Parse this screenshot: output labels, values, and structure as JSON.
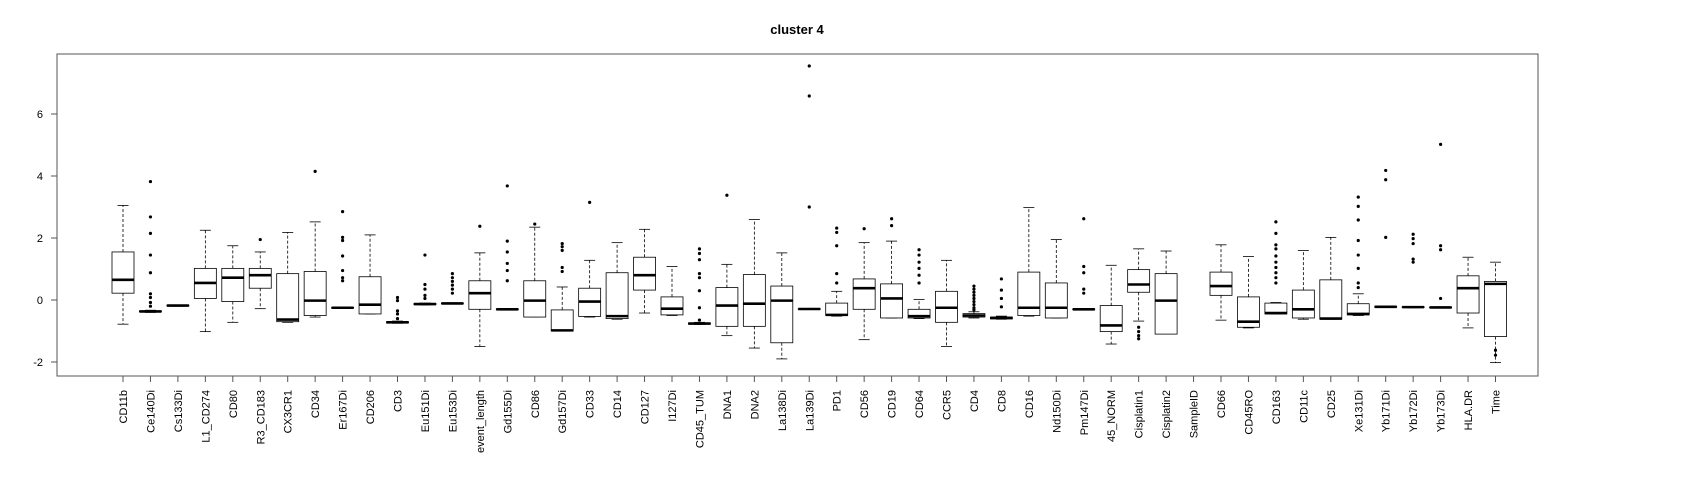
{
  "chart_data": {
    "type": "boxplot",
    "title": "cluster 4",
    "xlabel": "",
    "ylabel": "",
    "ylim": [
      -2.4,
      7.7
    ],
    "yticks": [
      -2,
      0,
      2,
      4,
      6
    ],
    "grid": false,
    "legend": "none",
    "colors": {
      "box_fill": "#ffffff",
      "stroke": "#000000",
      "median": "#000000"
    },
    "categories": [
      "CD11b",
      "Ce140Di",
      "Cs133Di",
      "L1_CD274",
      "CD80",
      "R3_CD183",
      "CX3CR1",
      "CD34",
      "Er167Di",
      "CD206",
      "CD3",
      "Eu151Di",
      "Eu153Di",
      "event_length",
      "Gd155Di",
      "CD86",
      "Gd157Di",
      "CD33",
      "CD14",
      "CD127",
      "I127Di",
      "CD45_TUM",
      "DNA1",
      "DNA2",
      "La138Di",
      "La139Di",
      "PD1",
      "CD56",
      "CD19",
      "CD64",
      "CCR5",
      "CD4",
      "CD8",
      "CD16",
      "Nd150Di",
      "Pm147Di",
      "45_NORM",
      "Cisplatin1",
      "Cisplatin2",
      "SampleID",
      "CD66",
      "CD45RO",
      "CD163",
      "CD11c",
      "CD25",
      "Xe131Di",
      "Yb171Di",
      "Yb172Di",
      "Yb173Di",
      "HLA.DR",
      "Time"
    ],
    "boxes": [
      {
        "wlo": -0.78,
        "q1": 0.22,
        "med": 0.65,
        "q3": 1.55,
        "whi": 3.05,
        "out": []
      },
      {
        "wlo": -0.4,
        "q1": -0.38,
        "med": -0.37,
        "q3": -0.35,
        "whi": -0.33,
        "out": [
          3.82,
          2.68,
          2.15,
          1.45,
          0.88,
          0.2,
          0.08,
          -0.08,
          -0.2
        ]
      },
      {
        "wlo": -0.2,
        "q1": -0.19,
        "med": -0.18,
        "q3": -0.17,
        "whi": -0.16,
        "out": []
      },
      {
        "wlo": -1.02,
        "q1": 0.05,
        "med": 0.55,
        "q3": 1.02,
        "whi": 2.25,
        "out": []
      },
      {
        "wlo": -0.72,
        "q1": -0.05,
        "med": 0.72,
        "q3": 1.02,
        "whi": 1.75,
        "out": []
      },
      {
        "wlo": -0.28,
        "q1": 0.38,
        "med": 0.8,
        "q3": 1.02,
        "whi": 1.55,
        "out": [
          1.95
        ]
      },
      {
        "wlo": -0.72,
        "q1": -0.7,
        "med": -0.63,
        "q3": 0.85,
        "whi": 2.18,
        "out": []
      },
      {
        "wlo": -0.55,
        "q1": -0.5,
        "med": -0.02,
        "q3": 0.92,
        "whi": 2.52,
        "out": [
          4.15
        ]
      },
      {
        "wlo": -0.27,
        "q1": -0.26,
        "med": -0.25,
        "q3": -0.24,
        "whi": -0.23,
        "out": [
          2.85,
          2.02,
          1.92,
          1.42,
          0.95,
          0.72,
          0.62
        ]
      },
      {
        "wlo": -0.45,
        "q1": -0.45,
        "med": -0.15,
        "q3": 0.75,
        "whi": 2.1,
        "out": []
      },
      {
        "wlo": -0.75,
        "q1": -0.74,
        "med": -0.72,
        "q3": -0.7,
        "whi": -0.68,
        "out": [
          0.08,
          -0.02,
          -0.35,
          -0.45,
          -0.6
        ]
      },
      {
        "wlo": -0.16,
        "q1": -0.15,
        "med": -0.13,
        "q3": -0.11,
        "whi": -0.1,
        "out": [
          1.45,
          0.5,
          0.35,
          0.15,
          0.05
        ]
      },
      {
        "wlo": -0.12,
        "q1": -0.12,
        "med": -0.11,
        "q3": -0.1,
        "whi": -0.09,
        "out": [
          0.85,
          0.72,
          0.6,
          0.48,
          0.35,
          0.22
        ]
      },
      {
        "wlo": -1.5,
        "q1": -0.3,
        "med": 0.22,
        "q3": 0.62,
        "whi": 1.52,
        "out": [
          2.38
        ]
      },
      {
        "wlo": -0.32,
        "q1": -0.31,
        "med": -0.3,
        "q3": -0.29,
        "whi": -0.28,
        "out": [
          3.68,
          1.9,
          1.55,
          1.18,
          0.95,
          0.62
        ]
      },
      {
        "wlo": -0.55,
        "q1": -0.55,
        "med": -0.02,
        "q3": 0.62,
        "whi": 2.35,
        "out": [
          2.45
        ]
      },
      {
        "wlo": -1.0,
        "q1": -1.0,
        "med": -0.98,
        "q3": -0.32,
        "whi": 0.42,
        "out": [
          1.82,
          1.72,
          1.6,
          1.05,
          0.92
        ]
      },
      {
        "wlo": -0.55,
        "q1": -0.53,
        "med": -0.05,
        "q3": 0.38,
        "whi": 1.28,
        "out": [
          3.15
        ]
      },
      {
        "wlo": -0.62,
        "q1": -0.6,
        "med": -0.52,
        "q3": 0.88,
        "whi": 1.85,
        "out": []
      },
      {
        "wlo": -0.42,
        "q1": 0.32,
        "med": 0.8,
        "q3": 1.38,
        "whi": 2.28,
        "out": []
      },
      {
        "wlo": -0.5,
        "q1": -0.48,
        "med": -0.28,
        "q3": 0.1,
        "whi": 1.08,
        "out": []
      },
      {
        "wlo": -0.79,
        "q1": -0.78,
        "med": -0.76,
        "q3": -0.74,
        "whi": -0.72,
        "out": [
          1.65,
          1.5,
          1.3,
          0.85,
          0.72,
          0.3,
          -0.25,
          -0.65
        ]
      },
      {
        "wlo": -1.15,
        "q1": -0.85,
        "med": -0.18,
        "q3": 0.4,
        "whi": 1.15,
        "out": [
          3.38
        ]
      },
      {
        "wlo": -1.55,
        "q1": -0.85,
        "med": -0.12,
        "q3": 0.82,
        "whi": 2.6,
        "out": []
      },
      {
        "wlo": -1.9,
        "q1": -1.38,
        "med": -0.02,
        "q3": 0.45,
        "whi": 1.52,
        "out": []
      },
      {
        "wlo": -0.31,
        "q1": -0.3,
        "med": -0.29,
        "q3": -0.28,
        "whi": -0.27,
        "out": [
          7.55,
          6.58,
          3.0
        ]
      },
      {
        "wlo": -0.52,
        "q1": -0.5,
        "med": -0.48,
        "q3": -0.1,
        "whi": 0.28,
        "out": [
          2.32,
          2.18,
          1.75,
          0.85,
          0.55
        ]
      },
      {
        "wlo": -1.28,
        "q1": -0.3,
        "med": 0.38,
        "q3": 0.68,
        "whi": 1.85,
        "out": [
          2.3
        ]
      },
      {
        "wlo": -0.58,
        "q1": -0.58,
        "med": 0.05,
        "q3": 0.52,
        "whi": 1.9,
        "out": [
          2.62,
          2.4
        ]
      },
      {
        "wlo": -0.6,
        "q1": -0.58,
        "med": -0.52,
        "q3": -0.3,
        "whi": 0.02,
        "out": [
          1.62,
          1.45,
          1.22,
          1.02,
          0.8,
          0.55
        ]
      },
      {
        "wlo": -1.5,
        "q1": -0.72,
        "med": -0.25,
        "q3": 0.28,
        "whi": 1.28,
        "out": []
      },
      {
        "wlo": -0.58,
        "q1": -0.55,
        "med": -0.5,
        "q3": -0.44,
        "whi": -0.38,
        "out": [
          0.45,
          0.35,
          0.25,
          0.15,
          0.05,
          -0.05,
          -0.15,
          -0.25,
          -0.32
        ]
      },
      {
        "wlo": -0.62,
        "q1": -0.61,
        "med": -0.58,
        "q3": -0.55,
        "whi": -0.52,
        "out": [
          0.68,
          0.32,
          0.05,
          -0.22
        ]
      },
      {
        "wlo": -0.52,
        "q1": -0.5,
        "med": -0.25,
        "q3": 0.9,
        "whi": 2.98,
        "out": []
      },
      {
        "wlo": -0.58,
        "q1": -0.58,
        "med": -0.25,
        "q3": 0.55,
        "whi": 1.95,
        "out": []
      },
      {
        "wlo": -0.32,
        "q1": -0.31,
        "med": -0.3,
        "q3": -0.29,
        "whi": -0.28,
        "out": [
          2.62,
          1.08,
          0.88,
          0.35,
          0.22
        ]
      },
      {
        "wlo": -1.42,
        "q1": -1.02,
        "med": -0.82,
        "q3": -0.18,
        "whi": 1.12,
        "out": []
      },
      {
        "wlo": -0.68,
        "q1": 0.25,
        "med": 0.5,
        "q3": 0.98,
        "whi": 1.65,
        "out": [
          -0.88,
          -1.02,
          -1.15,
          -1.25
        ]
      },
      {
        "wlo": -1.1,
        "q1": -1.1,
        "med": -0.02,
        "q3": 0.85,
        "whi": 1.58,
        "out": []
      },
      {
        "wlo": 0,
        "q1": 0,
        "med": 0,
        "q3": 0,
        "whi": 0,
        "out": [],
        "empty": true
      },
      {
        "wlo": -0.65,
        "q1": 0.15,
        "med": 0.45,
        "q3": 0.9,
        "whi": 1.78,
        "out": []
      },
      {
        "wlo": -0.9,
        "q1": -0.88,
        "med": -0.7,
        "q3": 0.1,
        "whi": 1.4,
        "out": []
      },
      {
        "wlo": -0.45,
        "q1": -0.45,
        "med": -0.42,
        "q3": -0.1,
        "whi": -0.08,
        "out": [
          2.52,
          2.15,
          1.78,
          1.65,
          1.42,
          1.22,
          1.05,
          0.88,
          0.72,
          0.55
        ]
      },
      {
        "wlo": -0.62,
        "q1": -0.58,
        "med": -0.3,
        "q3": 0.32,
        "whi": 1.6,
        "out": []
      },
      {
        "wlo": -0.62,
        "q1": -0.62,
        "med": -0.6,
        "q3": 0.65,
        "whi": 2.02,
        "out": []
      },
      {
        "wlo": -0.5,
        "q1": -0.48,
        "med": -0.45,
        "q3": -0.12,
        "whi": 0.2,
        "out": [
          3.32,
          3.02,
          2.58,
          1.92,
          1.45,
          1.02,
          0.55,
          0.4
        ]
      },
      {
        "wlo": -0.24,
        "q1": -0.23,
        "med": -0.22,
        "q3": -0.21,
        "whi": -0.2,
        "out": [
          4.18,
          3.88,
          2.02
        ]
      },
      {
        "wlo": -0.25,
        "q1": -0.24,
        "med": -0.23,
        "q3": -0.22,
        "whi": -0.21,
        "out": [
          2.12,
          1.98,
          1.82,
          1.32,
          1.22
        ]
      },
      {
        "wlo": -0.26,
        "q1": -0.25,
        "med": -0.24,
        "q3": -0.23,
        "whi": -0.22,
        "out": [
          5.02,
          1.75,
          1.62,
          0.05
        ]
      },
      {
        "wlo": -0.9,
        "q1": -0.42,
        "med": 0.38,
        "q3": 0.78,
        "whi": 1.38,
        "out": []
      },
      {
        "wlo": -2.02,
        "q1": -1.18,
        "med": 0.52,
        "q3": 0.6,
        "whi": 1.22,
        "out": [
          -1.62,
          -1.78
        ]
      }
    ]
  }
}
